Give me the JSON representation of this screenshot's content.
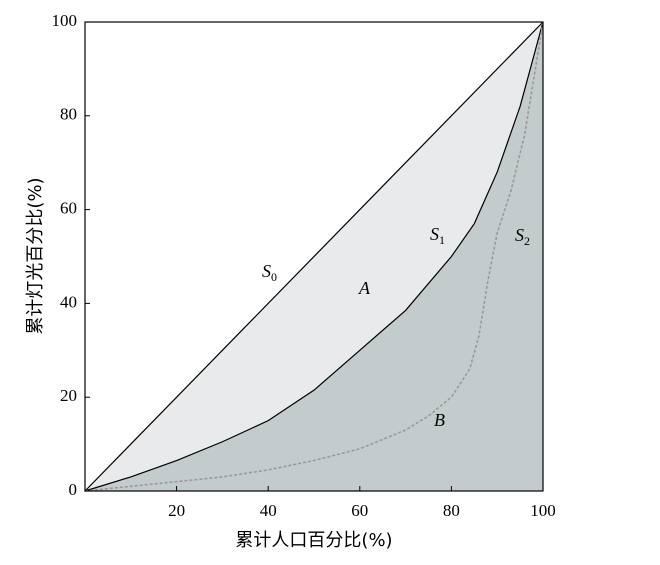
{
  "chart_data": {
    "type": "line",
    "x_label": "累计人口百分比(%)",
    "y_label": "累计灯光百分比(%)",
    "xlim": [
      0,
      100
    ],
    "ylim": [
      0,
      100
    ],
    "xticks": [
      20,
      40,
      60,
      80,
      100
    ],
    "yticks": [
      0,
      20,
      40,
      60,
      80,
      100
    ],
    "area_colors": [
      "#e8eaeb",
      "#c4cbcd"
    ],
    "series": [
      {
        "x": [
          0,
          100
        ],
        "values": [
          0,
          100
        ],
        "color": "#000000",
        "dashed": false
      },
      {
        "x": [
          0,
          10,
          20,
          30,
          40,
          50,
          60,
          70,
          80,
          85,
          90,
          95,
          100
        ],
        "values": [
          0,
          3,
          6.5,
          10.5,
          15,
          21.5,
          30,
          38.5,
          50,
          57,
          68,
          82,
          100
        ],
        "color": "#000000",
        "dashed": false
      },
      {
        "x": [
          0,
          10,
          20,
          30,
          40,
          50,
          60,
          70,
          75,
          80,
          84,
          86,
          88,
          90,
          93,
          96,
          100
        ],
        "values": [
          0,
          1,
          2,
          3,
          4.5,
          6.5,
          9,
          13,
          16,
          20,
          26,
          33,
          45,
          55,
          64,
          76,
          100
        ],
        "color": "#999999",
        "dashed": true
      }
    ],
    "annotations": [
      {
        "text": "S",
        "sub": "0"
      },
      {
        "text": "A"
      },
      {
        "text": "S",
        "sub": "1"
      },
      {
        "text": "S",
        "sub": "2"
      },
      {
        "text": "B"
      }
    ]
  }
}
